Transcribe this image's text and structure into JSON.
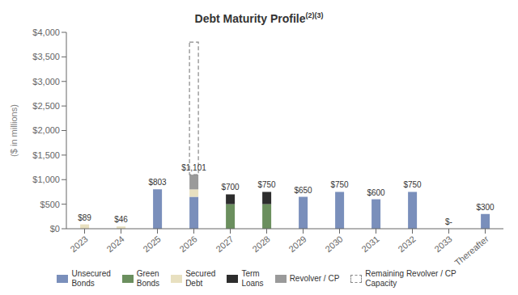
{
  "chart_data": {
    "type": "bar",
    "stacked": true,
    "title": "Debt Maturity Profile",
    "title_superscript": "(2)(3)",
    "ylabel": "($ in millions)",
    "categories": [
      "2023",
      "2024",
      "2025",
      "2026",
      "2027",
      "2028",
      "2029",
      "2030",
      "2031",
      "2032",
      "2033",
      "Thereafter"
    ],
    "series": [
      {
        "name": "Unsecured\nBonds",
        "color": "#7a8fbb",
        "values": [
          0,
          0,
          803,
          650,
          0,
          0,
          650,
          750,
          600,
          750,
          0,
          300
        ]
      },
      {
        "name": "Green\nBonds",
        "color": "#6b8f5e",
        "values": [
          0,
          0,
          0,
          0,
          500,
          500,
          0,
          0,
          0,
          0,
          0,
          0
        ]
      },
      {
        "name": "Secured\nDebt",
        "color": "#e8e0c0",
        "values": [
          89,
          46,
          0,
          151,
          0,
          0,
          0,
          0,
          0,
          0,
          0,
          0
        ]
      },
      {
        "name": "Term\nLoans",
        "color": "#2d2d2d",
        "values": [
          0,
          0,
          0,
          0,
          200,
          250,
          0,
          0,
          0,
          0,
          0,
          0
        ]
      },
      {
        "name": "Revolver / CP",
        "color": "#9a9a9a",
        "values": [
          0,
          0,
          0,
          300,
          0,
          0,
          0,
          0,
          0,
          0,
          0,
          0
        ]
      }
    ],
    "totals": [
      89,
      46,
      803,
      1101,
      700,
      750,
      650,
      750,
      600,
      750,
      0,
      300
    ],
    "total_labels": [
      "$89",
      "$46",
      "$803",
      "$1,101",
      "$700",
      "$750",
      "$650",
      "$750",
      "$600",
      "$750",
      "$-",
      "$300"
    ],
    "remaining_capacity": {
      "name": "Remaining Revolver / CP\nCapacity",
      "category": "2026",
      "value": 3800,
      "color": "#888888",
      "line_style": "dashed"
    },
    "ylim": [
      0,
      4000
    ],
    "yticks": [
      {
        "value": 0,
        "label": "$0"
      },
      {
        "value": 500,
        "label": "$500"
      },
      {
        "value": 1000,
        "label": "$1,000"
      },
      {
        "value": 1500,
        "label": "$1,500"
      },
      {
        "value": 2000,
        "label": "$2,000"
      },
      {
        "value": 2500,
        "label": "$2,500"
      },
      {
        "value": 3000,
        "label": "$3,000"
      },
      {
        "value": 3500,
        "label": "$3,500"
      },
      {
        "value": 4000,
        "label": "$4,000"
      }
    ],
    "grid": false,
    "legend": "bottom"
  }
}
